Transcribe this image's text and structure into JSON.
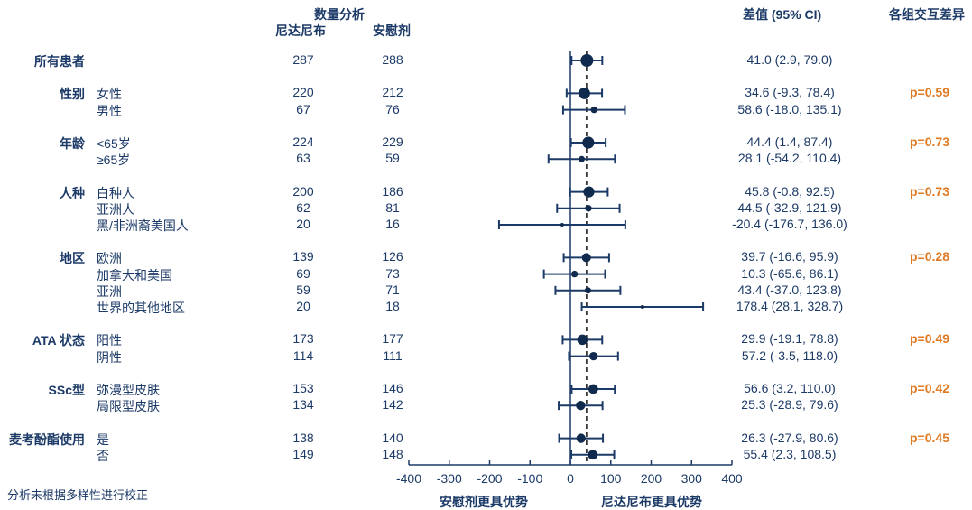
{
  "headers": {
    "count_title": "数量分析",
    "col_drug": "尼达尼布",
    "col_placebo": "安慰剂",
    "col_diff": "差值 (95% CI)",
    "col_interaction": "各组交互差异"
  },
  "footnote": "分析未根据多样性进行校正",
  "chart_data": {
    "type": "forest",
    "xlim": [
      -400,
      400
    ],
    "x_ticks": [
      -400,
      -300,
      -200,
      -100,
      0,
      100,
      200,
      300,
      400
    ],
    "reference_line": 40,
    "x_label_left": "安慰剂更具优势",
    "x_label_right": "尼达尼布更具优势",
    "groups": [
      {
        "label": "所有患者",
        "p": "",
        "rows": [
          {
            "sub": "",
            "n_drug": "287",
            "n_placebo": "288",
            "est": 41.0,
            "lo": 2.9,
            "hi": 79.0,
            "text": "41.0 (2.9, 79.0)"
          }
        ]
      },
      {
        "label": "性别",
        "p": "p=0.59",
        "rows": [
          {
            "sub": "女性",
            "n_drug": "220",
            "n_placebo": "212",
            "est": 34.6,
            "lo": -9.3,
            "hi": 78.4,
            "text": "34.6 (-9.3, 78.4)"
          },
          {
            "sub": "男性",
            "n_drug": "67",
            "n_placebo": "76",
            "est": 58.6,
            "lo": -18.0,
            "hi": 135.1,
            "text": "58.6 (-18.0, 135.1)"
          }
        ]
      },
      {
        "label": "年龄",
        "p": "p=0.73",
        "rows": [
          {
            "sub": "<65岁",
            "n_drug": "224",
            "n_placebo": "229",
            "est": 44.4,
            "lo": 1.4,
            "hi": 87.4,
            "text": "44.4 (1.4, 87.4)"
          },
          {
            "sub": "≥65岁",
            "n_drug": "63",
            "n_placebo": "59",
            "est": 28.1,
            "lo": -54.2,
            "hi": 110.4,
            "text": "28.1 (-54.2, 110.4)"
          }
        ]
      },
      {
        "label": "人种",
        "p": "p=0.73",
        "rows": [
          {
            "sub": "白种人",
            "n_drug": "200",
            "n_placebo": "186",
            "est": 45.8,
            "lo": -0.8,
            "hi": 92.5,
            "text": "45.8 (-0.8, 92.5)"
          },
          {
            "sub": "亚洲人",
            "n_drug": "62",
            "n_placebo": "81",
            "est": 44.5,
            "lo": -32.9,
            "hi": 121.9,
            "text": "44.5 (-32.9, 121.9)"
          },
          {
            "sub": "黑/非洲裔美国人",
            "n_drug": "20",
            "n_placebo": "16",
            "est": -20.4,
            "lo": -176.7,
            "hi": 136.0,
            "text": "-20.4 (-176.7, 136.0)"
          }
        ]
      },
      {
        "label": "地区",
        "p": "p=0.28",
        "rows": [
          {
            "sub": "欧洲",
            "n_drug": "139",
            "n_placebo": "126",
            "est": 39.7,
            "lo": -16.6,
            "hi": 95.9,
            "text": "39.7 (-16.6, 95.9)"
          },
          {
            "sub": "加拿大和美国",
            "n_drug": "69",
            "n_placebo": "73",
            "est": 10.3,
            "lo": -65.6,
            "hi": 86.1,
            "text": "10.3 (-65.6, 86.1)"
          },
          {
            "sub": "亚洲",
            "n_drug": "59",
            "n_placebo": "71",
            "est": 43.4,
            "lo": -37.0,
            "hi": 123.8,
            "text": "43.4 (-37.0, 123.8)"
          },
          {
            "sub": "世界的其他地区",
            "n_drug": "20",
            "n_placebo": "18",
            "est": 178.4,
            "lo": 28.1,
            "hi": 328.7,
            "text": "178.4 (28.1, 328.7)"
          }
        ]
      },
      {
        "label": "ATA 状态",
        "p": "p=0.49",
        "rows": [
          {
            "sub": "阳性",
            "n_drug": "173",
            "n_placebo": "177",
            "est": 29.9,
            "lo": -19.1,
            "hi": 78.8,
            "text": "29.9 (-19.1, 78.8)"
          },
          {
            "sub": "阴性",
            "n_drug": "114",
            "n_placebo": "111",
            "est": 57.2,
            "lo": -3.5,
            "hi": 118.0,
            "text": "57.2 (-3.5, 118.0)"
          }
        ]
      },
      {
        "label": "SSc型",
        "p": "p=0.42",
        "rows": [
          {
            "sub": "弥漫型皮肤",
            "n_drug": "153",
            "n_placebo": "146",
            "est": 56.6,
            "lo": 3.2,
            "hi": 110.0,
            "text": "56.6 (3.2, 110.0)"
          },
          {
            "sub": "局限型皮肤",
            "n_drug": "134",
            "n_placebo": "142",
            "est": 25.3,
            "lo": -28.9,
            "hi": 79.6,
            "text": "25.3 (-28.9, 79.6)"
          }
        ]
      },
      {
        "label": "麦考酚酯使用",
        "p": "p=0.45",
        "rows": [
          {
            "sub": "是",
            "n_drug": "138",
            "n_placebo": "140",
            "est": 26.3,
            "lo": -27.9,
            "hi": 80.6,
            "text": "26.3 (-27.9, 80.6)"
          },
          {
            "sub": "否",
            "n_drug": "149",
            "n_placebo": "148",
            "est": 55.4,
            "lo": 2.3,
            "hi": 108.5,
            "text": "55.4 (2.3, 108.5)"
          }
        ]
      }
    ]
  },
  "colors": {
    "navy": "#1c3a67",
    "dark_point": "#0f2a4d",
    "p_value": "#e07b24"
  }
}
